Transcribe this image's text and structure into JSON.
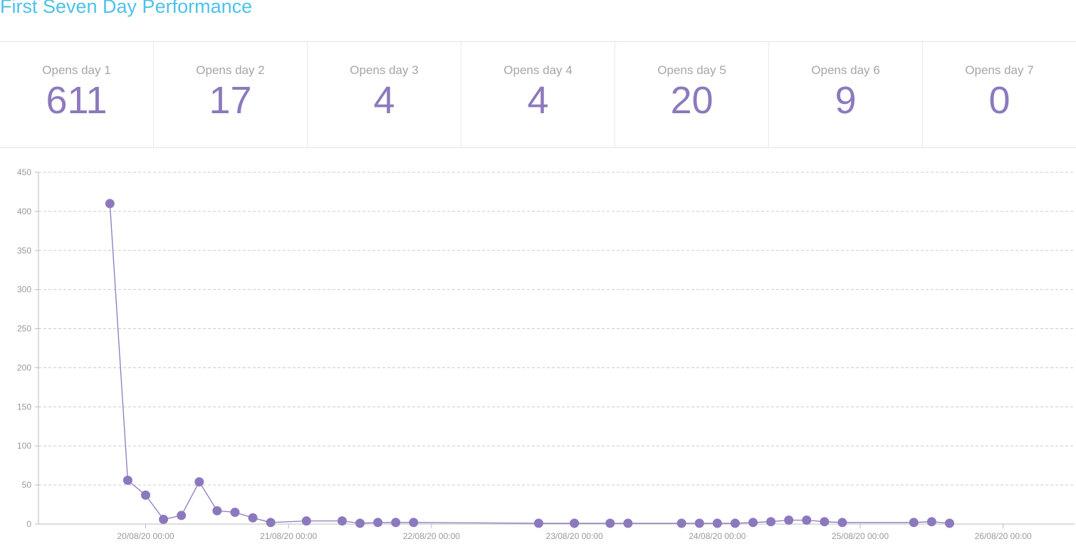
{
  "page": {
    "title": "First Seven Day Performance"
  },
  "stats": [
    {
      "label": "Opens day 1",
      "value": "611"
    },
    {
      "label": "Opens day 2",
      "value": "17"
    },
    {
      "label": "Opens day 3",
      "value": "4"
    },
    {
      "label": "Opens day 4",
      "value": "4"
    },
    {
      "label": "Opens day 5",
      "value": "20"
    },
    {
      "label": "Opens day 6",
      "value": "9"
    },
    {
      "label": "Opens day 7",
      "value": "0"
    }
  ],
  "colors": {
    "title": "#4ec1ea",
    "accent": "#8c79bd",
    "label": "#a6a6a6",
    "grid": "#cccccc"
  },
  "chart_data": {
    "type": "line",
    "x_format": "DD/MM/YY HH:mm",
    "x_ticks": [
      "20/08/20 00:00",
      "21/08/20 00:00",
      "22/08/20 00:00",
      "23/08/20 00:00",
      "24/08/20 00:00",
      "25/08/20 00:00",
      "26/08/20 00:00"
    ],
    "y_ticks": [
      0,
      50,
      100,
      150,
      200,
      250,
      300,
      350,
      400,
      450
    ],
    "ylim": [
      0,
      450
    ],
    "xlim": [
      "19/08/20 06:00",
      "26/08/20 12:00"
    ],
    "grid": true,
    "series": [
      {
        "points": [
          {
            "x": "19/08/20 18:00",
            "y": 410
          },
          {
            "x": "19/08/20 21:00",
            "y": 56
          },
          {
            "x": "20/08/20 00:00",
            "y": 37
          },
          {
            "x": "20/08/20 03:00",
            "y": 6
          },
          {
            "x": "20/08/20 06:00",
            "y": 11
          },
          {
            "x": "20/08/20 09:00",
            "y": 54
          },
          {
            "x": "20/08/20 12:00",
            "y": 17
          },
          {
            "x": "20/08/20 15:00",
            "y": 15
          },
          {
            "x": "20/08/20 18:00",
            "y": 8
          },
          {
            "x": "20/08/20 21:00",
            "y": 2
          },
          {
            "x": "21/08/20 03:00",
            "y": 4
          },
          {
            "x": "21/08/20 09:00",
            "y": 4
          },
          {
            "x": "21/08/20 12:00",
            "y": 1
          },
          {
            "x": "21/08/20 15:00",
            "y": 2
          },
          {
            "x": "21/08/20 18:00",
            "y": 2
          },
          {
            "x": "21/08/20 21:00",
            "y": 2
          },
          {
            "x": "22/08/20 18:00",
            "y": 1
          },
          {
            "x": "23/08/20 00:00",
            "y": 1
          },
          {
            "x": "23/08/20 06:00",
            "y": 1
          },
          {
            "x": "23/08/20 09:00",
            "y": 1
          },
          {
            "x": "23/08/20 18:00",
            "y": 1
          },
          {
            "x": "23/08/20 21:00",
            "y": 1
          },
          {
            "x": "24/08/20 00:00",
            "y": 1
          },
          {
            "x": "24/08/20 03:00",
            "y": 1
          },
          {
            "x": "24/08/20 06:00",
            "y": 2
          },
          {
            "x": "24/08/20 09:00",
            "y": 3
          },
          {
            "x": "24/08/20 12:00",
            "y": 5
          },
          {
            "x": "24/08/20 15:00",
            "y": 5
          },
          {
            "x": "24/08/20 18:00",
            "y": 3
          },
          {
            "x": "24/08/20 21:00",
            "y": 2
          },
          {
            "x": "25/08/20 09:00",
            "y": 2
          },
          {
            "x": "25/08/20 12:00",
            "y": 3
          },
          {
            "x": "25/08/20 15:00",
            "y": 1
          }
        ]
      }
    ]
  }
}
